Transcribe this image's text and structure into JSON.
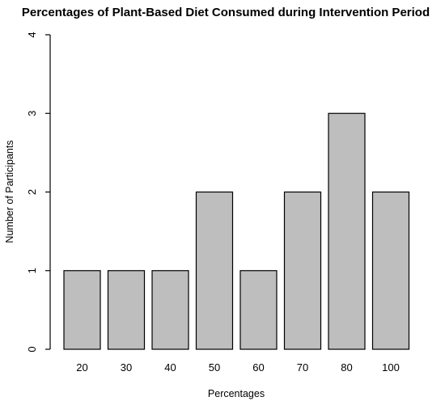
{
  "chart_data": {
    "type": "bar",
    "title": "Percentages of Plant-Based Diet Consumed during Intervention Period",
    "xlabel": "Percentages",
    "ylabel": "Number of Participants",
    "categories": [
      "20",
      "30",
      "40",
      "50",
      "60",
      "70",
      "80",
      "100"
    ],
    "values": [
      1,
      1,
      1,
      2,
      1,
      2,
      3,
      2
    ],
    "ylim": [
      0,
      4
    ],
    "yticks": [
      "0",
      "1",
      "2",
      "3",
      "4"
    ],
    "grid": false,
    "colors": {
      "bar_fill": "#bebebe",
      "bar_stroke": "#000000"
    }
  }
}
